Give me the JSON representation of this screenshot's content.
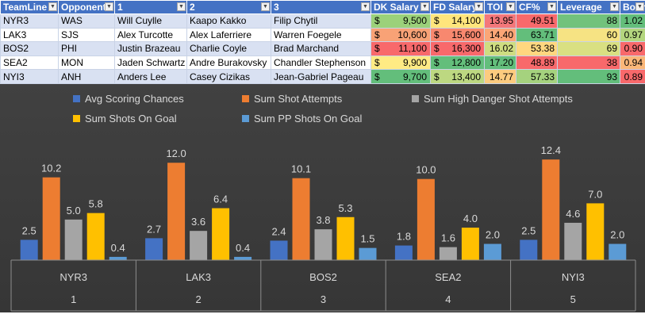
{
  "table": {
    "headers": [
      "TeamLine",
      "Opponent",
      "1",
      "2",
      "3",
      "DK Salary",
      "FD Salary",
      "TOI",
      "CF%",
      "Leverage",
      "Boom"
    ],
    "currency_symbol": "$",
    "rows": [
      {
        "teamline": "NYR3",
        "opponent": "WAS",
        "p1": "Will Cuylle",
        "p2": "Kaapo Kakko",
        "p3": "Filip Chytil",
        "dk": "9,500",
        "fd": "14,100",
        "toi": "13.95",
        "cf": "49.51",
        "leverage": "88",
        "boom": "1.02",
        "colors": {
          "dk": "#9bd17a",
          "fd": "#ffe57c",
          "toi": "#f4777a",
          "cf": "#f8696b",
          "leverage": "#72c27c",
          "boom": "#63be7b"
        }
      },
      {
        "teamline": "LAK3",
        "opponent": "SJS",
        "p1": "Alex Turcotte",
        "p2": "Alex Laferriere",
        "p3": "Warren Foegele",
        "dk": "10,600",
        "fd": "15,600",
        "toi": "14.40",
        "cf": "63.71",
        "leverage": "60",
        "boom": "0.97",
        "colors": {
          "dk": "#f8a276",
          "fd": "#f8886f",
          "toi": "#fba676",
          "cf": "#63be7b",
          "leverage": "#f6e383",
          "boom": "#b4d67f"
        }
      },
      {
        "teamline": "BOS2",
        "opponent": "PHI",
        "p1": "Justin Brazeau",
        "p2": "Charlie Coyle",
        "p3": "Brad Marchand",
        "dk": "11,100",
        "fd": "16,300",
        "toi": "16.02",
        "cf": "53.38",
        "leverage": "69",
        "boom": "0.90",
        "colors": {
          "dk": "#f8696b",
          "fd": "#f8696b",
          "toi": "#cfdd81",
          "cf": "#ffd77f",
          "leverage": "#d9e082",
          "boom": "#f8696b"
        }
      },
      {
        "teamline": "SEA2",
        "opponent": "MON",
        "p1": "Jaden Schwartz",
        "p2": "Andre Burakovsky",
        "p3": "Chandler Stephenson",
        "dk": "9,900",
        "fd": "12,800",
        "toi": "17.20",
        "cf": "48.89",
        "leverage": "38",
        "boom": "0.94",
        "colors": {
          "dk": "#ffeb84",
          "fd": "#63be7b",
          "toi": "#63be7b",
          "cf": "#f8696b",
          "leverage": "#f8696b",
          "boom": "#fbb779"
        }
      },
      {
        "teamline": "NYI3",
        "opponent": "ANH",
        "p1": "Anders Lee",
        "p2": "Casey Cizikas",
        "p3": "Jean-Gabriel Pageau",
        "dk": "9,700",
        "fd": "13,400",
        "toi": "14.77",
        "cf": "57.33",
        "leverage": "93",
        "boom": "0.89",
        "colors": {
          "dk": "#63be7b",
          "fd": "#bdd881",
          "toi": "#fccb7f",
          "cf": "#a5d27e",
          "leverage": "#63be7b",
          "boom": "#f8696b"
        }
      }
    ]
  },
  "chart_data": {
    "type": "bar",
    "categories": [
      "NYR3",
      "LAK3",
      "BOS2",
      "SEA2",
      "NYI3"
    ],
    "category_numbers": [
      "1",
      "2",
      "3",
      "4",
      "5"
    ],
    "series": [
      {
        "name": "Avg Scoring Chances",
        "color": "#4472c4",
        "values": [
          2.5,
          2.7,
          2.4,
          1.8,
          2.5
        ]
      },
      {
        "name": "Sum Shot Attempts",
        "color": "#ed7d31",
        "values": [
          10.2,
          12.0,
          10.1,
          10.0,
          12.4
        ]
      },
      {
        "name": "Sum High Danger Shot Attempts",
        "color": "#a5a5a5",
        "values": [
          5.0,
          3.6,
          3.8,
          1.6,
          4.6
        ]
      },
      {
        "name": "Sum Shots On Goal",
        "color": "#ffc000",
        "values": [
          5.8,
          6.4,
          5.3,
          4.0,
          7.0
        ]
      },
      {
        "name": "Sum PP Shots On Goal",
        "color": "#5b9bd5",
        "values": [
          0.4,
          0.4,
          1.5,
          2.0,
          2.0
        ]
      }
    ],
    "ylim": [
      0,
      13
    ],
    "data_labels": true,
    "legend_position": "top",
    "gridlines": false,
    "title": "",
    "xlabel": "",
    "ylabel": ""
  }
}
